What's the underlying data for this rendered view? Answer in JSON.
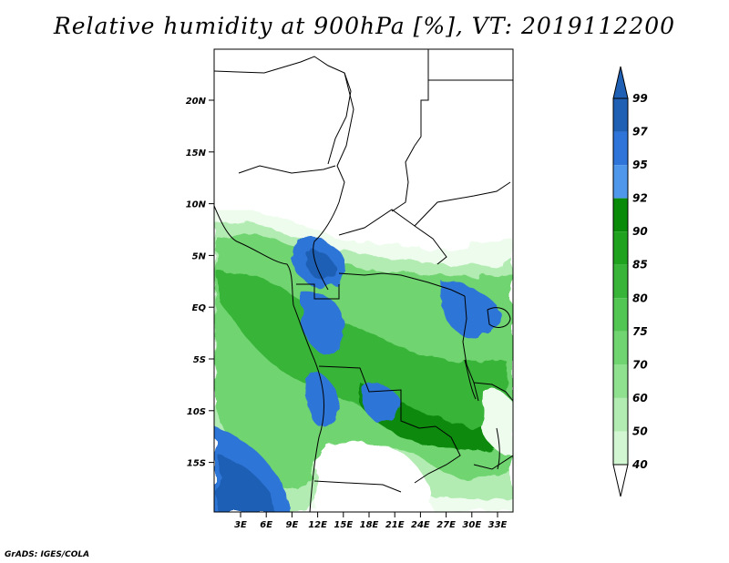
{
  "title": "Relative humidity at 900hPa [%], VT: 2019112200",
  "credit": "GrADS: IGES/COLA",
  "map": {
    "lat_labels": [
      "20N",
      "15N",
      "10N",
      "5N",
      "EQ",
      "5S",
      "10S",
      "15S"
    ],
    "lon_labels": [
      "3E",
      "6E",
      "9E",
      "12E",
      "15E",
      "18E",
      "21E",
      "24E",
      "27E",
      "30E",
      "33E"
    ],
    "field": "relative humidity",
    "level": "900hPa",
    "units": "%",
    "valid_time": "2019112200"
  },
  "colorbar": {
    "labels": [
      "99",
      "97",
      "95",
      "92",
      "90",
      "85",
      "80",
      "75",
      "70",
      "60",
      "50",
      "40"
    ],
    "colors": [
      "#1f5fb4",
      "#2f74d8",
      "#4f97ea",
      "#098a09",
      "#1fa31f",
      "#38b438",
      "#52c652",
      "#70d470",
      "#8fe08f",
      "#b2ecb2",
      "#d2f6d2",
      "#eefcee"
    ],
    "below_color": "#ffffff",
    "above_color": "#1f5fb4"
  }
}
